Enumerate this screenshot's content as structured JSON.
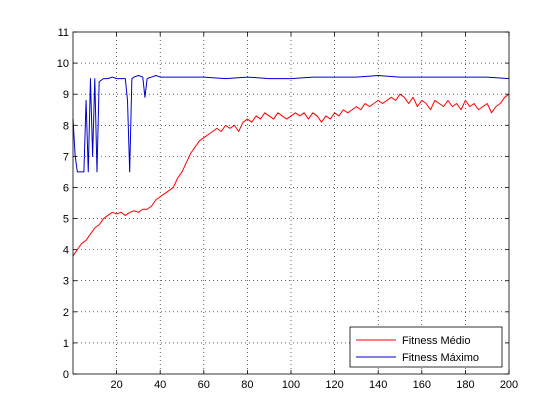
{
  "chart_data": {
    "type": "line",
    "title": "",
    "xlabel": "",
    "ylabel": "",
    "xlim": [
      0,
      200
    ],
    "ylim": [
      0,
      11
    ],
    "xticks": [
      "20",
      "40",
      "60",
      "80",
      "100",
      "120",
      "140",
      "160",
      "180",
      "200"
    ],
    "yticks": [
      "0",
      "1",
      "2",
      "3",
      "4",
      "5",
      "6",
      "7",
      "8",
      "9",
      "10",
      "11"
    ],
    "grid": true,
    "legend_position": "bottom-right",
    "series": [
      {
        "name": "Fitness Médio",
        "color": "#ff0000",
        "points": [
          [
            0,
            3.8
          ],
          [
            2,
            4.0
          ],
          [
            4,
            4.2
          ],
          [
            6,
            4.3
          ],
          [
            8,
            4.5
          ],
          [
            10,
            4.7
          ],
          [
            12,
            4.8
          ],
          [
            14,
            5.0
          ],
          [
            16,
            5.1
          ],
          [
            18,
            5.2
          ],
          [
            20,
            5.15
          ],
          [
            22,
            5.2
          ],
          [
            24,
            5.1
          ],
          [
            26,
            5.2
          ],
          [
            28,
            5.25
          ],
          [
            30,
            5.2
          ],
          [
            32,
            5.3
          ],
          [
            34,
            5.3
          ],
          [
            36,
            5.4
          ],
          [
            38,
            5.6
          ],
          [
            40,
            5.7
          ],
          [
            42,
            5.8
          ],
          [
            44,
            5.9
          ],
          [
            46,
            6.0
          ],
          [
            48,
            6.3
          ],
          [
            50,
            6.5
          ],
          [
            52,
            6.8
          ],
          [
            54,
            7.1
          ],
          [
            56,
            7.3
          ],
          [
            58,
            7.5
          ],
          [
            60,
            7.6
          ],
          [
            62,
            7.7
          ],
          [
            64,
            7.8
          ],
          [
            66,
            7.9
          ],
          [
            68,
            7.8
          ],
          [
            70,
            8.0
          ],
          [
            72,
            7.9
          ],
          [
            74,
            8.0
          ],
          [
            76,
            7.8
          ],
          [
            78,
            8.1
          ],
          [
            80,
            8.2
          ],
          [
            82,
            8.1
          ],
          [
            84,
            8.3
          ],
          [
            86,
            8.2
          ],
          [
            88,
            8.4
          ],
          [
            90,
            8.3
          ],
          [
            92,
            8.2
          ],
          [
            94,
            8.4
          ],
          [
            96,
            8.3
          ],
          [
            98,
            8.2
          ],
          [
            100,
            8.3
          ],
          [
            102,
            8.4
          ],
          [
            104,
            8.3
          ],
          [
            106,
            8.4
          ],
          [
            108,
            8.2
          ],
          [
            110,
            8.4
          ],
          [
            112,
            8.3
          ],
          [
            114,
            8.1
          ],
          [
            116,
            8.3
          ],
          [
            118,
            8.2
          ],
          [
            120,
            8.4
          ],
          [
            122,
            8.3
          ],
          [
            124,
            8.5
          ],
          [
            126,
            8.4
          ],
          [
            128,
            8.5
          ],
          [
            130,
            8.6
          ],
          [
            132,
            8.5
          ],
          [
            134,
            8.7
          ],
          [
            136,
            8.6
          ],
          [
            138,
            8.7
          ],
          [
            140,
            8.8
          ],
          [
            142,
            8.7
          ],
          [
            144,
            8.8
          ],
          [
            146,
            8.9
          ],
          [
            148,
            8.8
          ],
          [
            150,
            9.0
          ],
          [
            152,
            8.9
          ],
          [
            154,
            8.7
          ],
          [
            156,
            8.9
          ],
          [
            158,
            8.6
          ],
          [
            160,
            8.8
          ],
          [
            162,
            8.7
          ],
          [
            164,
            8.5
          ],
          [
            166,
            8.8
          ],
          [
            168,
            8.7
          ],
          [
            170,
            8.6
          ],
          [
            172,
            8.8
          ],
          [
            174,
            8.6
          ],
          [
            176,
            8.7
          ],
          [
            178,
            8.5
          ],
          [
            180,
            8.8
          ],
          [
            182,
            8.6
          ],
          [
            184,
            8.7
          ],
          [
            186,
            8.5
          ],
          [
            188,
            8.6
          ],
          [
            190,
            8.7
          ],
          [
            192,
            8.4
          ],
          [
            194,
            8.6
          ],
          [
            196,
            8.7
          ],
          [
            198,
            8.9
          ],
          [
            200,
            9.0
          ]
        ]
      },
      {
        "name": "Fitness Máximo",
        "color": "#0000cc",
        "points": [
          [
            0,
            8.2
          ],
          [
            1,
            7.0
          ],
          [
            2,
            6.5
          ],
          [
            3,
            6.5
          ],
          [
            4,
            6.5
          ],
          [
            5,
            6.5
          ],
          [
            6,
            8.8
          ],
          [
            7,
            6.5
          ],
          [
            8,
            9.5
          ],
          [
            9,
            7.0
          ],
          [
            10,
            9.5
          ],
          [
            11,
            6.5
          ],
          [
            12,
            9.4
          ],
          [
            14,
            9.5
          ],
          [
            16,
            9.5
          ],
          [
            18,
            9.55
          ],
          [
            20,
            9.5
          ],
          [
            22,
            9.5
          ],
          [
            24,
            9.5
          ],
          [
            25,
            8.8
          ],
          [
            26,
            6.5
          ],
          [
            27,
            9.5
          ],
          [
            28,
            9.55
          ],
          [
            30,
            9.6
          ],
          [
            32,
            9.55
          ],
          [
            33,
            8.9
          ],
          [
            34,
            9.5
          ],
          [
            36,
            9.55
          ],
          [
            38,
            9.6
          ],
          [
            40,
            9.55
          ],
          [
            50,
            9.55
          ],
          [
            60,
            9.55
          ],
          [
            70,
            9.5
          ],
          [
            80,
            9.55
          ],
          [
            90,
            9.5
          ],
          [
            100,
            9.5
          ],
          [
            110,
            9.55
          ],
          [
            120,
            9.55
          ],
          [
            130,
            9.55
          ],
          [
            140,
            9.6
          ],
          [
            150,
            9.55
          ],
          [
            160,
            9.55
          ],
          [
            170,
            9.55
          ],
          [
            180,
            9.55
          ],
          [
            190,
            9.55
          ],
          [
            200,
            9.5
          ]
        ]
      }
    ]
  }
}
